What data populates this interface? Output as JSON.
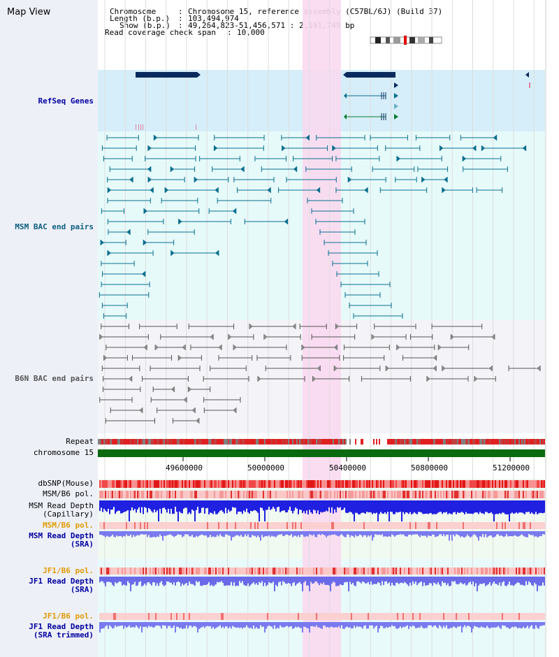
{
  "map_title": "Map View",
  "header": {
    "chromosome_label": "Chromosome",
    "chromosome_value": "Chromosome 15, reference assembly (C57BL/6J) (Build 37)",
    "length_label": "Length (b.p.)",
    "length_value": "103,494,974",
    "show_label": "Show (b.p.)",
    "show_value": "49,264,823-51,456,571 : 2,191,749 bp",
    "coverage_label": "Read coverage check span",
    "coverage_value": "10,000"
  },
  "tracks": {
    "refseq": "RefSeq Genes",
    "msm_bac": "MSM BAC end pairs",
    "b6n_bac": "B6N BAC end pairs",
    "repeat": "Repeat",
    "chromosome": "chromosome 15",
    "dbsnp": "dbSNP(Mouse)",
    "msm_b6_pol_1": "MSM/B6 pol.",
    "msm_read_depth_cap_1": "MSM Read Depth",
    "msm_read_depth_cap_2": "(Capillary)",
    "msm_b6_pol_2": "MSM/B6 pol.",
    "msm_read_depth_sra_1": "MSM Read Depth",
    "msm_read_depth_sra_2": "(SRA)",
    "jf1_b6_pol_1": "JF1/B6 pol.",
    "jf1_read_depth_1": "JF1 Read Depth",
    "jf1_read_depth_2": "(SRA)",
    "jf1_b6_pol_2": "JF1/B6 pol.",
    "jf1_read_depth_tr_1": "JF1 Read Depth",
    "jf1_read_depth_tr_2": "(SRA trimmed)"
  },
  "axis_ticks": [
    "49600000",
    "50000000",
    "50400000",
    "50800000",
    "51200000"
  ],
  "colors": {
    "highlight": "#f9d9f0",
    "refseq_bg": "#d6eef9",
    "msm_bg": "#e6fafa",
    "b6n_bg": "#f4f4f8",
    "gene": "#0a2a5e",
    "bac_teal": "#0b6e8e",
    "bac_gray": "#555555",
    "chromosome": "#0a6a10",
    "depth_blue": "#2020e0",
    "depth_light": "#7a7af0"
  }
}
